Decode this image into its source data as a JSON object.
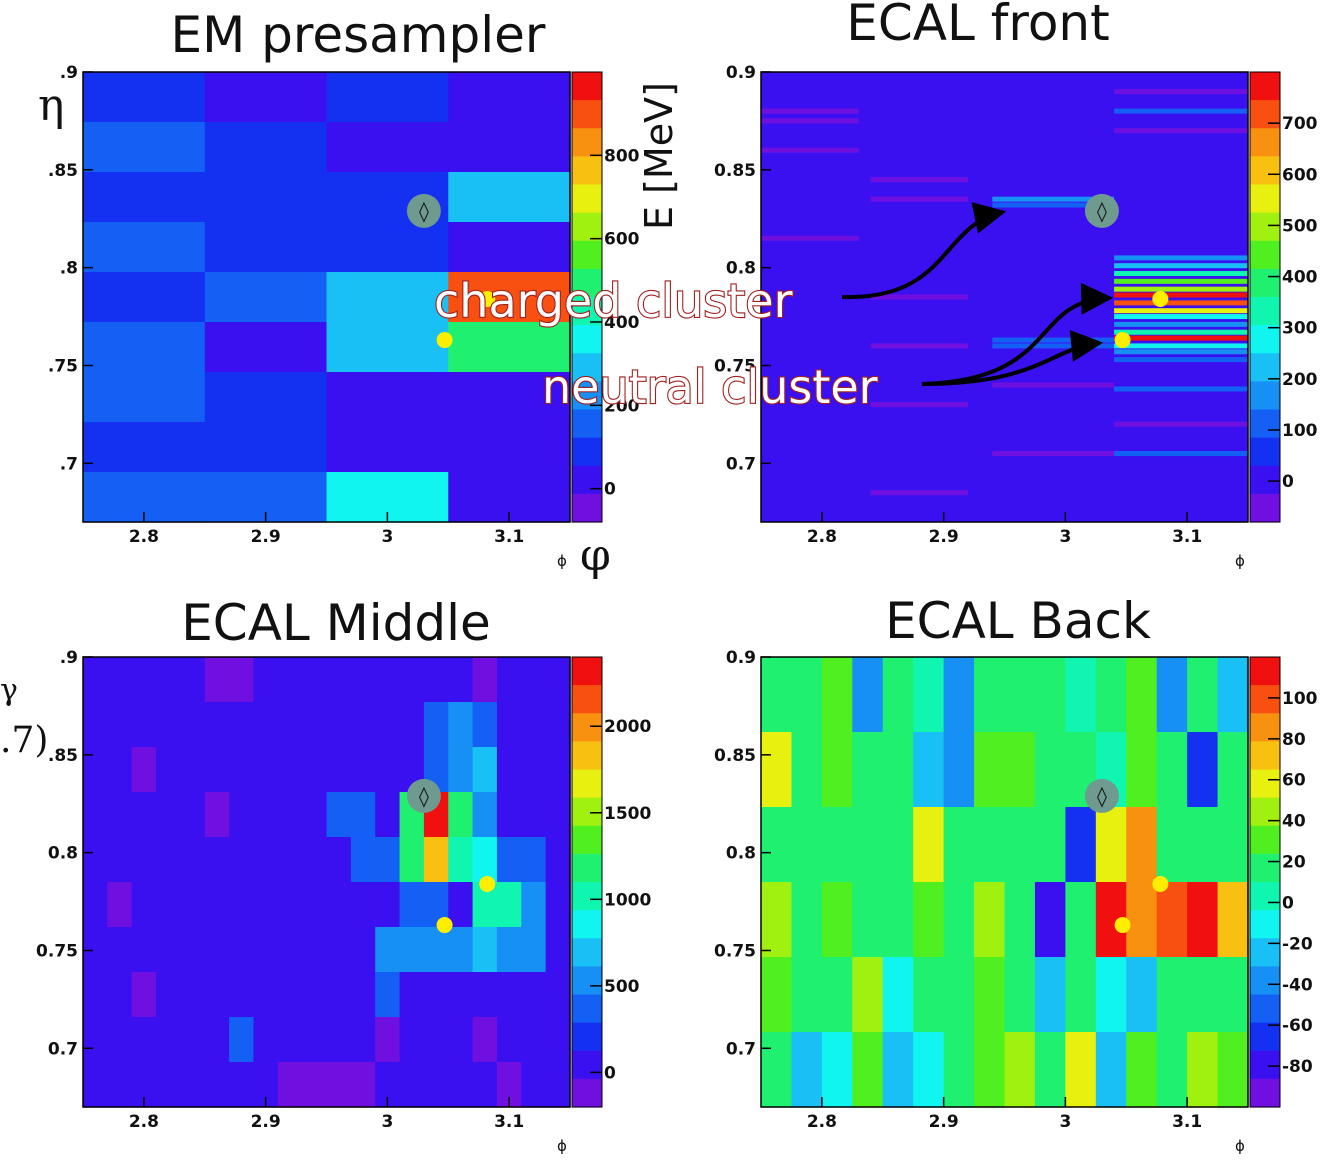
{
  "labels": {
    "eta_symbol": "η",
    "phi_symbol": "φ",
    "energy_unit": "E [MeV]",
    "cut_gamma": "γ",
    "cut_paren": ".7)"
  },
  "annotations": {
    "charged": "charged cluster",
    "neutral": "neutral cluster"
  },
  "colorscale": [
    "#7010e0",
    "#3a10f0",
    "#1430f0",
    "#1460f5",
    "#1690f5",
    "#18c0f5",
    "#10f5f0",
    "#10f5b0",
    "#20f070",
    "#50f020",
    "#a0f010",
    "#e8f010",
    "#f8c010",
    "#f89010",
    "#f85010",
    "#f01010"
  ],
  "chart_data": [
    {
      "type": "heatmap",
      "title": "EM presampler",
      "xlabel": "ϕ",
      "ylabel": "",
      "x_ticks": [
        "2.8",
        "2.9",
        "3",
        "3.1"
      ],
      "y_ticks": [
        ".9",
        ".85",
        ".8",
        ".75",
        ".7"
      ],
      "x_tick_values": [
        2.8,
        2.9,
        3.0,
        3.1
      ],
      "y_tick_values": [
        0.9,
        0.85,
        0.8,
        0.75,
        0.7
      ],
      "xlim": [
        2.75,
        3.15
      ],
      "ylim": [
        0.67,
        0.9
      ],
      "zlim": [
        -80,
        1000
      ],
      "colorbar_ticks": [
        "0",
        "200",
        "400",
        "600",
        "800"
      ],
      "colorbar_tick_values": [
        0,
        200,
        400,
        600,
        800
      ],
      "cell_rows_top_to_bottom": [
        [
          80,
          20,
          60,
          20
        ],
        [
          160,
          90,
          20,
          20
        ],
        [
          80,
          90,
          60,
          300
        ],
        [
          160,
          90,
          60,
          20
        ],
        [
          80,
          160,
          300,
          900
        ],
        [
          160,
          20,
          300,
          500
        ],
        [
          160,
          90,
          20,
          20
        ],
        [
          80,
          90,
          20,
          20
        ],
        [
          160,
          160,
          360,
          20
        ]
      ],
      "hit_markers": [
        {
          "phi": 3.082,
          "eta": 0.784,
          "label": ""
        },
        {
          "phi": 3.047,
          "eta": 0.763,
          "label": ""
        }
      ],
      "track_marker": {
        "phi": 3.03,
        "eta": 0.829,
        "symbol": "◊"
      }
    },
    {
      "type": "heatmap",
      "title": "ECAL front",
      "xlabel": "ϕ",
      "ylabel": "",
      "x_ticks": [
        "2.8",
        "2.9",
        "3",
        "3.1"
      ],
      "y_ticks": [
        "0.9",
        "0.85",
        "0.8",
        "0.75",
        "0.7"
      ],
      "x_tick_values": [
        2.8,
        2.9,
        3.0,
        3.1
      ],
      "y_tick_values": [
        0.9,
        0.85,
        0.8,
        0.75,
        0.7
      ],
      "xlim": [
        2.75,
        3.15
      ],
      "ylim": [
        0.67,
        0.9
      ],
      "zlim": [
        -80,
        800
      ],
      "colorbar_ticks": [
        "0",
        "100",
        "200",
        "300",
        "400",
        "500",
        "600",
        "700"
      ],
      "colorbar_tick_values": [
        0,
        100,
        200,
        300,
        400,
        500,
        600,
        700
      ],
      "background_value": 20,
      "strips": [
        {
          "phi": [
            2.75,
            2.83
          ],
          "eta": 0.88,
          "value": -60
        },
        {
          "phi": [
            2.75,
            2.83
          ],
          "eta": 0.875,
          "value": -40
        },
        {
          "phi": [
            2.75,
            2.83
          ],
          "eta": 0.86,
          "value": -60
        },
        {
          "phi": [
            2.84,
            2.92
          ],
          "eta": 0.845,
          "value": -60
        },
        {
          "phi": [
            2.84,
            2.92
          ],
          "eta": 0.835,
          "value": -60
        },
        {
          "phi": [
            2.75,
            2.83
          ],
          "eta": 0.815,
          "value": -40
        },
        {
          "phi": [
            2.84,
            2.92
          ],
          "eta": 0.785,
          "value": -60
        },
        {
          "phi": [
            2.84,
            2.92
          ],
          "eta": 0.76,
          "value": -60
        },
        {
          "phi": [
            2.84,
            2.92
          ],
          "eta": 0.73,
          "value": -40
        },
        {
          "phi": [
            2.84,
            2.92
          ],
          "eta": 0.685,
          "value": -60
        },
        {
          "phi": [
            2.94,
            3.04
          ],
          "eta": 0.835,
          "value": 160
        },
        {
          "phi": [
            2.94,
            3.04
          ],
          "eta": 0.832,
          "value": 120
        },
        {
          "phi": [
            2.94,
            3.04
          ],
          "eta": 0.763,
          "value": 130
        },
        {
          "phi": [
            2.94,
            3.04
          ],
          "eta": 0.76,
          "value": 110
        },
        {
          "phi": [
            2.94,
            3.04
          ],
          "eta": 0.74,
          "value": -40
        },
        {
          "phi": [
            2.94,
            3.04
          ],
          "eta": 0.705,
          "value": -40
        },
        {
          "phi": [
            3.04,
            3.15
          ],
          "eta": 0.89,
          "value": -40
        },
        {
          "phi": [
            3.04,
            3.15
          ],
          "eta": 0.88,
          "value": 100
        },
        {
          "phi": [
            3.04,
            3.15
          ],
          "eta": 0.87,
          "value": -40
        },
        {
          "phi": [
            3.04,
            3.15
          ],
          "eta": 0.805,
          "value": 160
        },
        {
          "phi": [
            3.04,
            3.15
          ],
          "eta": 0.801,
          "value": 240
        },
        {
          "phi": [
            3.04,
            3.15
          ],
          "eta": 0.797,
          "value": 350
        },
        {
          "phi": [
            3.04,
            3.15
          ],
          "eta": 0.793,
          "value": 430
        },
        {
          "phi": [
            3.04,
            3.15
          ],
          "eta": 0.789,
          "value": 480
        },
        {
          "phi": [
            3.04,
            3.15
          ],
          "eta": 0.786,
          "value": 780
        },
        {
          "phi": [
            3.04,
            3.15
          ],
          "eta": 0.782,
          "value": 720
        },
        {
          "phi": [
            3.04,
            3.15
          ],
          "eta": 0.778,
          "value": 560
        },
        {
          "phi": [
            3.04,
            3.15
          ],
          "eta": 0.775,
          "value": 250
        },
        {
          "phi": [
            3.04,
            3.15
          ],
          "eta": 0.771,
          "value": 180
        },
        {
          "phi": [
            3.04,
            3.15
          ],
          "eta": 0.767,
          "value": 330
        },
        {
          "phi": [
            3.04,
            3.15
          ],
          "eta": 0.764,
          "value": 770
        },
        {
          "phi": [
            3.04,
            3.15
          ],
          "eta": 0.76,
          "value": 300
        },
        {
          "phi": [
            3.04,
            3.15
          ],
          "eta": 0.757,
          "value": 170
        },
        {
          "phi": [
            3.04,
            3.15
          ],
          "eta": 0.753,
          "value": 120
        },
        {
          "phi": [
            3.04,
            3.15
          ],
          "eta": 0.738,
          "value": 110
        },
        {
          "phi": [
            3.04,
            3.15
          ],
          "eta": 0.72,
          "value": -40
        },
        {
          "phi": [
            3.04,
            3.15
          ],
          "eta": 0.705,
          "value": 100
        }
      ],
      "hit_markers": [
        {
          "phi": 3.078,
          "eta": 0.784,
          "label": ""
        },
        {
          "phi": 3.047,
          "eta": 0.763,
          "label": ""
        }
      ],
      "track_marker": {
        "phi": 3.03,
        "eta": 0.829,
        "symbol": "◊"
      }
    },
    {
      "type": "heatmap",
      "title": "ECAL Middle",
      "xlabel": "ϕ",
      "ylabel": "",
      "x_ticks": [
        "2.8",
        "2.9",
        "3",
        "3.1"
      ],
      "y_ticks": [
        ".9",
        ".85",
        "0.8",
        "0.75",
        "0.7"
      ],
      "x_tick_values": [
        2.8,
        2.9,
        3.0,
        3.1
      ],
      "y_tick_values": [
        0.9,
        0.85,
        0.8,
        0.75,
        0.7
      ],
      "xlim": [
        2.75,
        3.15
      ],
      "ylim": [
        0.67,
        0.9
      ],
      "zlim": [
        -200,
        2400
      ],
      "colorbar_ticks": [
        "0",
        "500",
        "1000",
        "1500",
        "2000"
      ],
      "colorbar_tick_values": [
        0,
        500,
        1000,
        1500,
        2000
      ],
      "cell_rows_top_to_bottom": [
        [
          20,
          20,
          20,
          20,
          20,
          -60,
          -60,
          20,
          20,
          20,
          20,
          20,
          20,
          20,
          20,
          20,
          -60,
          20,
          20,
          20
        ],
        [
          20,
          20,
          20,
          20,
          20,
          20,
          20,
          20,
          20,
          20,
          20,
          20,
          20,
          20,
          350,
          500,
          380,
          20,
          20,
          20
        ],
        [
          20,
          20,
          -60,
          20,
          20,
          20,
          20,
          20,
          20,
          20,
          20,
          20,
          20,
          20,
          300,
          500,
          750,
          20,
          20,
          20
        ],
        [
          20,
          20,
          20,
          20,
          20,
          -60,
          20,
          20,
          20,
          20,
          300,
          400,
          20,
          1250,
          2300,
          1250,
          600,
          20,
          20,
          20
        ],
        [
          20,
          20,
          20,
          20,
          20,
          20,
          20,
          20,
          20,
          20,
          20,
          300,
          350,
          1250,
          1750,
          1050,
          900,
          300,
          300,
          20
        ],
        [
          20,
          -60,
          20,
          20,
          20,
          20,
          20,
          20,
          20,
          20,
          20,
          20,
          20,
          300,
          300,
          20,
          1050,
          1050,
          450,
          20
        ],
        [
          20,
          20,
          20,
          20,
          20,
          20,
          20,
          20,
          20,
          20,
          20,
          20,
          450,
          450,
          450,
          450,
          700,
          450,
          450,
          20
        ],
        [
          20,
          20,
          -60,
          20,
          20,
          20,
          20,
          20,
          20,
          20,
          20,
          20,
          380,
          20,
          20,
          20,
          20,
          20,
          20,
          20
        ],
        [
          20,
          20,
          20,
          20,
          20,
          20,
          400,
          20,
          20,
          20,
          20,
          20,
          -60,
          20,
          20,
          20,
          -60,
          20,
          20,
          20
        ],
        [
          20,
          20,
          20,
          20,
          20,
          20,
          20,
          20,
          -60,
          -60,
          -60,
          -60,
          20,
          20,
          20,
          20,
          20,
          -60,
          20,
          20
        ]
      ],
      "hit_markers": [
        {
          "phi": 3.082,
          "eta": 0.784,
          "label": ""
        },
        {
          "phi": 3.047,
          "eta": 0.763,
          "label": ""
        }
      ],
      "track_marker": {
        "phi": 3.03,
        "eta": 0.829,
        "symbol": "◊"
      }
    },
    {
      "type": "heatmap",
      "title": "ECAL Back",
      "xlabel": "ϕ",
      "ylabel": "",
      "x_ticks": [
        "2.8",
        "2.9",
        "3",
        "3.1"
      ],
      "y_ticks": [
        "0.9",
        "0.85",
        "0.8",
        "0.75",
        "0.7"
      ],
      "x_tick_values": [
        2.8,
        2.9,
        3.0,
        3.1
      ],
      "y_tick_values": [
        0.9,
        0.85,
        0.8,
        0.75,
        0.7
      ],
      "xlim": [
        2.75,
        3.15
      ],
      "ylim": [
        0.67,
        0.9
      ],
      "zlim": [
        -100,
        120
      ],
      "colorbar_ticks": [
        "-80",
        "-60",
        "-40",
        "-20",
        "0",
        "20",
        "40",
        "60",
        "80",
        "100"
      ],
      "colorbar_tick_values": [
        -80,
        -60,
        -40,
        -20,
        0,
        20,
        40,
        60,
        80,
        100
      ],
      "cell_rows_top_to_bottom": [
        [
          20,
          10,
          30,
          -40,
          20,
          0,
          -40,
          20,
          20,
          20,
          0,
          20,
          30,
          -40,
          20,
          -20
        ],
        [
          60,
          10,
          30,
          20,
          10,
          -20,
          -40,
          30,
          30,
          20,
          10,
          0,
          30,
          10,
          -60,
          20
        ],
        [
          10,
          10,
          20,
          20,
          20,
          60,
          10,
          20,
          20,
          10,
          -60,
          60,
          80,
          10,
          10,
          20
        ],
        [
          40,
          20,
          30,
          10,
          20,
          30,
          10,
          40,
          10,
          -80,
          10,
          110,
          80,
          100,
          110,
          70
        ],
        [
          30,
          20,
          10,
          40,
          -10,
          20,
          20,
          30,
          10,
          -20,
          10,
          -10,
          -20,
          20,
          20,
          10
        ],
        [
          20,
          -20,
          -10,
          30,
          -20,
          -10,
          20,
          30,
          50,
          20,
          60,
          -20,
          30,
          10,
          50,
          30
        ]
      ],
      "hit_markers": [
        {
          "phi": 3.078,
          "eta": 0.784,
          "label": ""
        },
        {
          "phi": 3.047,
          "eta": 0.763,
          "label": ""
        }
      ],
      "track_marker": {
        "phi": 3.03,
        "eta": 0.829,
        "symbol": "◊"
      }
    }
  ]
}
